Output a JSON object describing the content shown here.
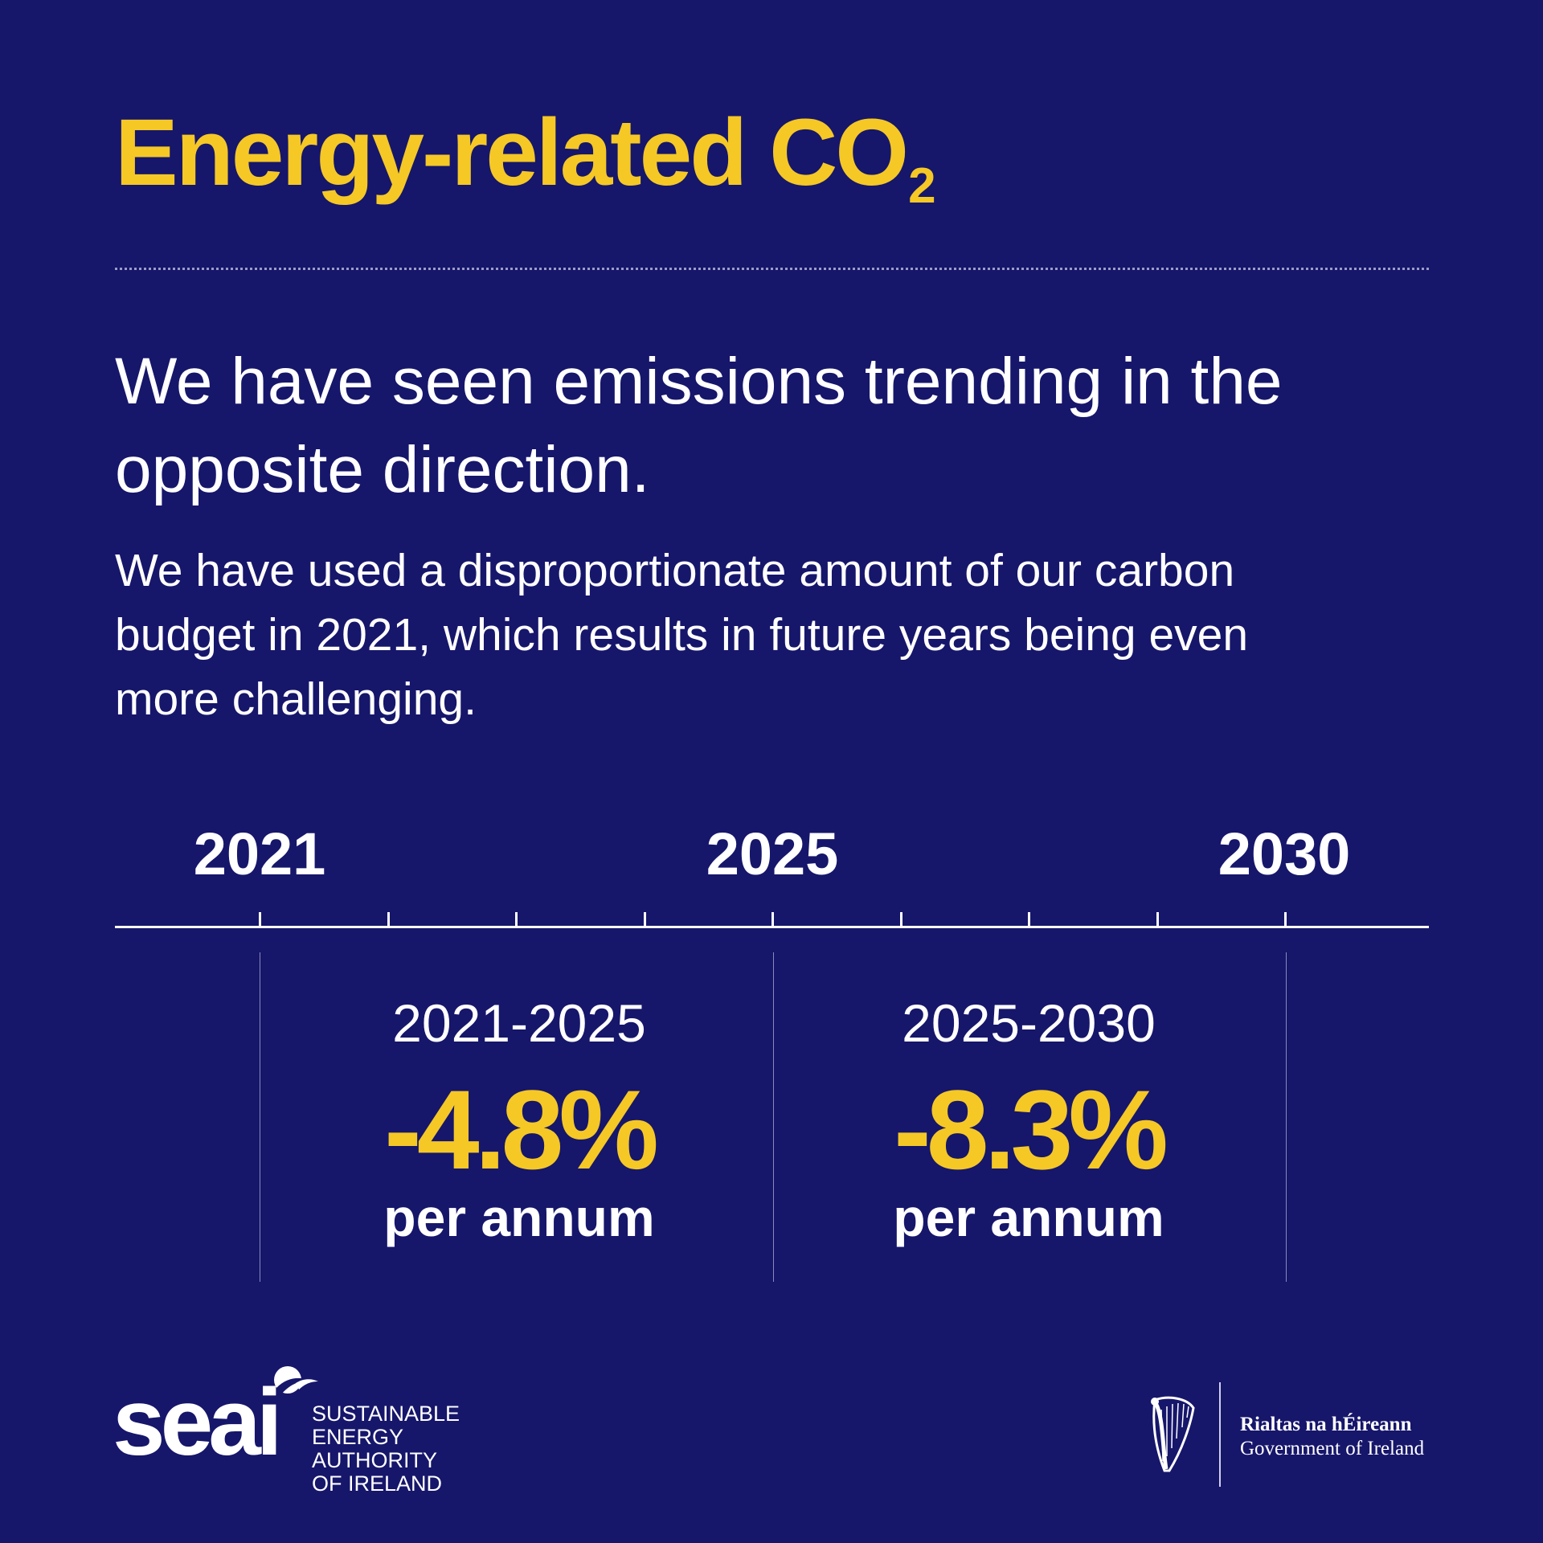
{
  "title": {
    "main": "Energy-related CO",
    "subscript": "2"
  },
  "headline": "We have seen emissions trending in the opposite direction.",
  "body": "We have used a disproportionate amount of our carbon budget in 2021, which results in future years being even more challenging.",
  "timeline": {
    "years": [
      "2021",
      "2025",
      "2030"
    ],
    "periods": [
      {
        "range": "2021-2025",
        "change": "-4.8%",
        "unit": "per annum"
      },
      {
        "range": "2025-2030",
        "change": "-8.3%",
        "unit": "per annum"
      }
    ]
  },
  "footer": {
    "seai_wordmark": "seai",
    "seai_name": [
      "SUSTAINABLE",
      "ENERGY AUTHORITY",
      "OF IRELAND"
    ],
    "gov_irish": "Rialtas na hÉireann",
    "gov_english": "Government of Ireland"
  },
  "colors": {
    "background": "#16166b",
    "accent": "#f5c825",
    "text": "#ffffff"
  },
  "icons": {
    "seai_logo": "seai-swoosh-icon",
    "gov_logo": "harp-icon"
  }
}
